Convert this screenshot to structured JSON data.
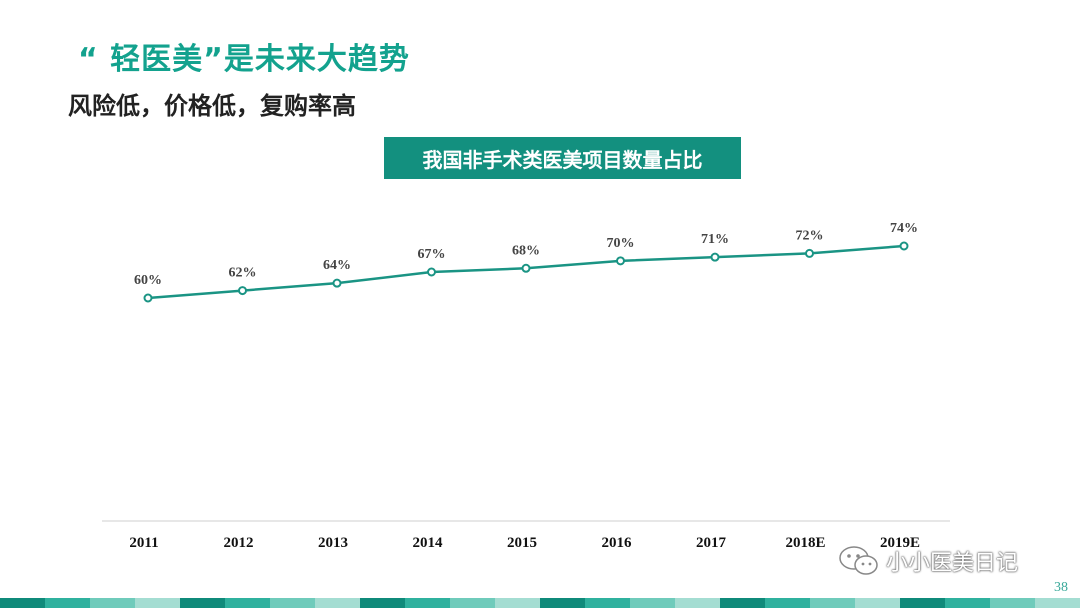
{
  "slide": {
    "headline": "“ 轻医美”是未来大趋势",
    "subtitle": "风险低，价格低，复购率高",
    "page_number": "38"
  },
  "watermark": {
    "text": "小小医美日记",
    "icon": "wechat-icon"
  },
  "colors": {
    "accent": "#13a28e",
    "title_box": "#13907f",
    "line": "#1a9484",
    "footer": [
      "#0f8a7a",
      "#2fb19e",
      "#6fcbbb",
      "#a4ddd2"
    ]
  },
  "chart_data": {
    "type": "line",
    "title": "我国非手术类医美项目数量占比",
    "categories": [
      "2011",
      "2012",
      "2013",
      "2014",
      "2015",
      "2016",
      "2017",
      "2018E",
      "2019E"
    ],
    "values": [
      60,
      62,
      64,
      67,
      68,
      70,
      71,
      72,
      74
    ],
    "data_labels": [
      "60%",
      "62%",
      "64%",
      "67%",
      "68%",
      "70%",
      "71%",
      "72%",
      "74%"
    ],
    "unit": "%",
    "xlabel": "",
    "ylabel": "",
    "grid": false,
    "legend": "none"
  }
}
